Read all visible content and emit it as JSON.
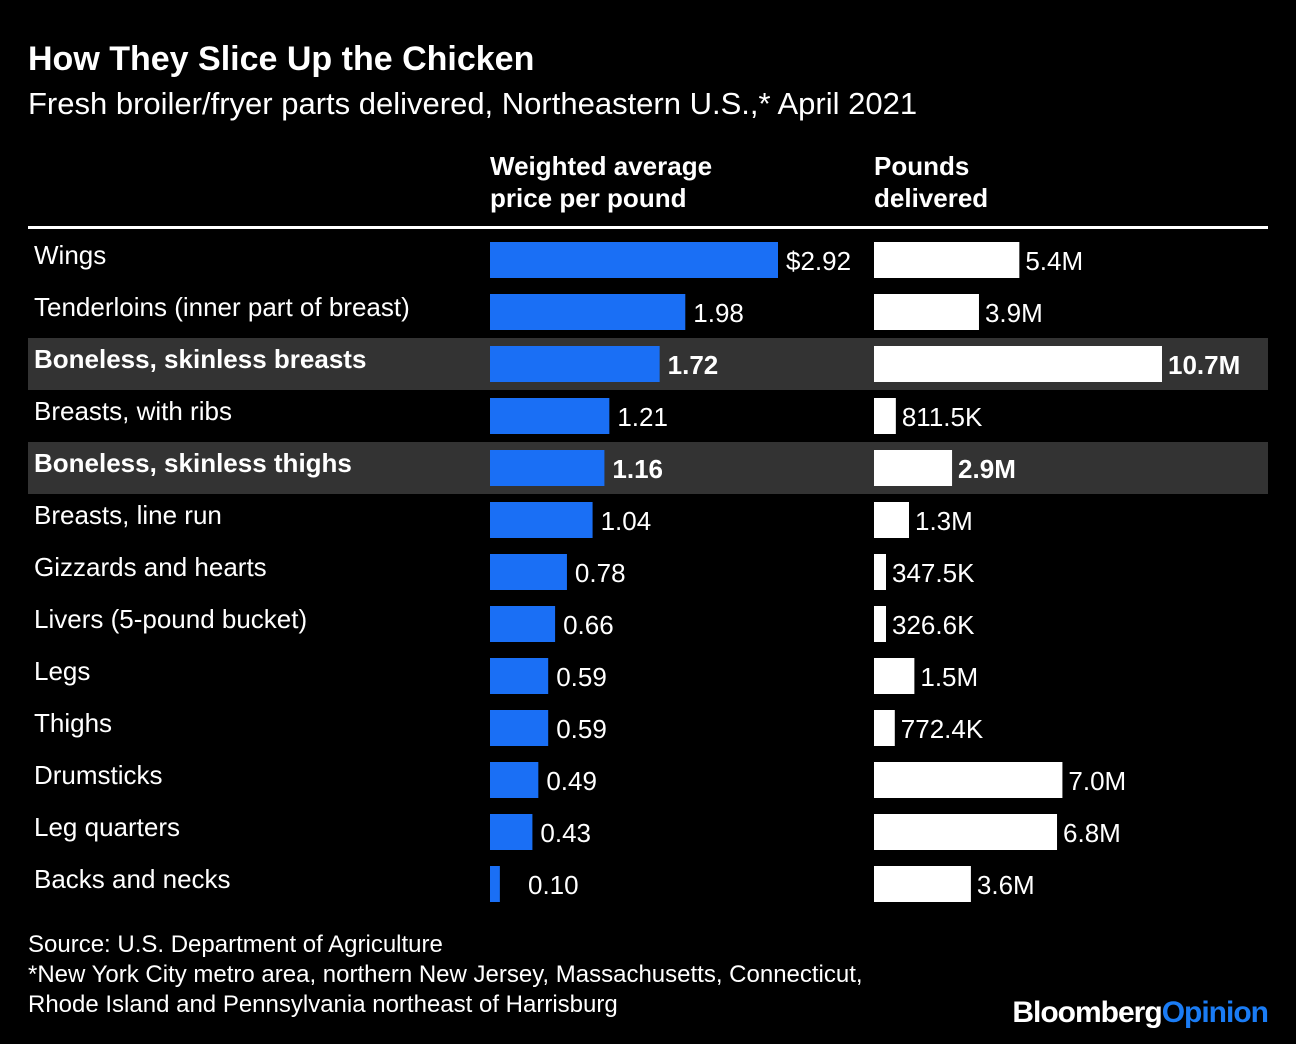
{
  "title": "How They Slice Up the Chicken",
  "subtitle": "Fresh broiler/fryer parts delivered, Northeastern U.S.,* April 2021",
  "columns": {
    "price": [
      "Weighted average",
      "price per pound"
    ],
    "pounds": [
      "Pounds",
      "delivered"
    ]
  },
  "source": [
    "Source: U.S. Department of Agriculture",
    "*New York City metro area, northern New Jersey, Massachusetts, Connecticut,",
    "Rhode Island and Pennsylvania northeast of Harrisburg"
  ],
  "logo": {
    "brand": "Bloomberg",
    "section": "Opinion"
  },
  "colors": {
    "background": "#000000",
    "price_bar": "#1a6ff5",
    "pounds_bar": "#ffffff",
    "highlight_row": "#333333",
    "text": "#ffffff"
  },
  "chart_data": {
    "type": "bar",
    "orientation": "horizontal",
    "categories": [
      "Wings",
      "Tenderloins (inner part of breast)",
      "Boneless, skinless breasts",
      "Breasts, with ribs",
      "Boneless, skinless thighs",
      "Breasts, line run",
      "Gizzards and hearts",
      "Livers (5-pound bucket)",
      "Legs",
      "Thighs",
      "Drumsticks",
      "Leg quarters",
      "Backs and necks"
    ],
    "highlighted": [
      "Boneless, skinless breasts",
      "Boneless, skinless thighs"
    ],
    "series": [
      {
        "key": "price",
        "values": [
          2.92,
          1.98,
          1.72,
          1.21,
          1.16,
          1.04,
          0.78,
          0.66,
          0.59,
          0.59,
          0.49,
          0.43,
          0.1
        ],
        "labels": [
          "$2.92",
          "1.98",
          "1.72",
          "1.21",
          "1.16",
          "1.04",
          "0.78",
          "0.66",
          "0.59",
          "0.59",
          "0.49",
          "0.43",
          "0.10"
        ]
      },
      {
        "key": "pounds",
        "values": [
          5.4,
          3.9,
          10.7,
          0.8115,
          2.9,
          1.3,
          0.3475,
          0.3266,
          1.5,
          0.7724,
          7.0,
          6.8,
          3.6
        ],
        "labels": [
          "5.4M",
          "3.9M",
          "10.7M",
          "811.5K",
          "2.9M",
          "1.3M",
          "347.5K",
          "326.6K",
          "1.5M",
          "772.4K",
          "7.0M",
          "6.8M",
          "3.6M"
        ]
      }
    ]
  }
}
